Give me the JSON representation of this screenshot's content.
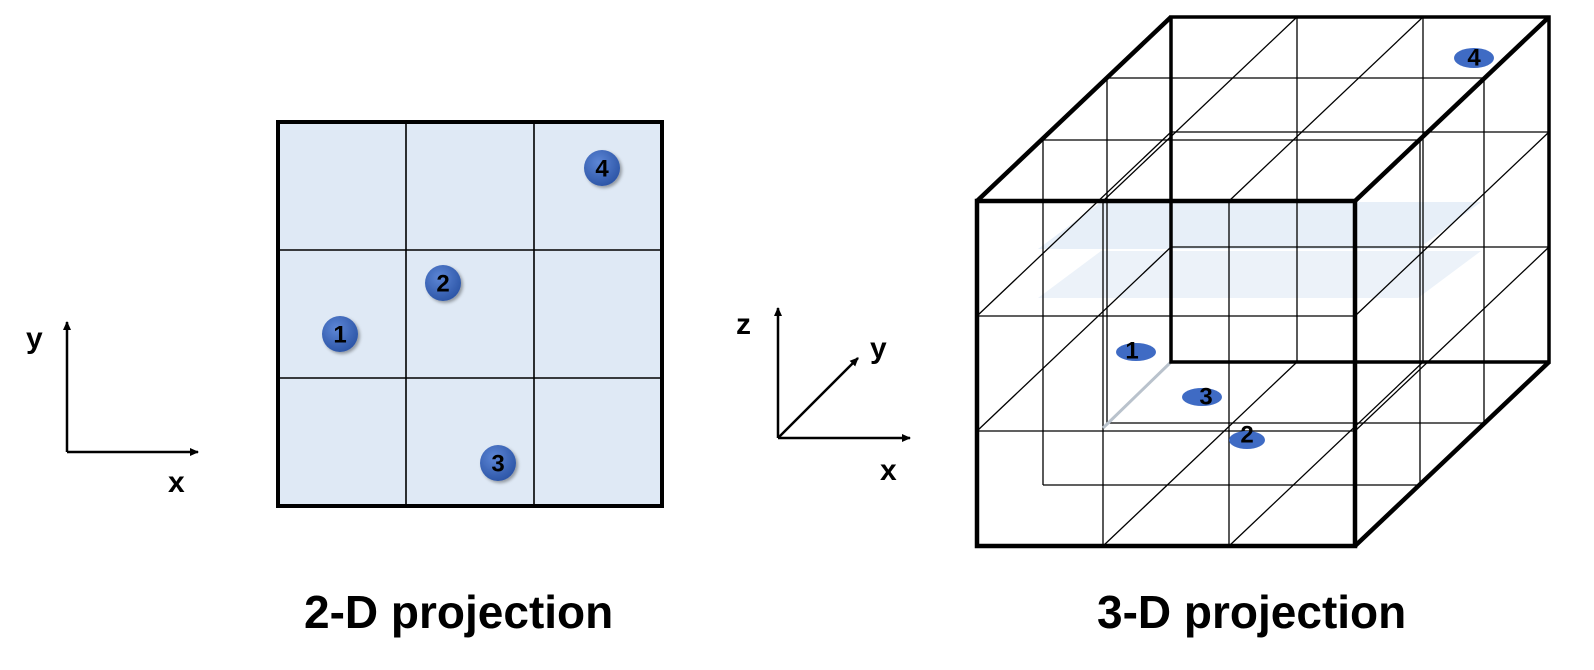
{
  "diagram": {
    "left_panel": {
      "caption": "2-D projection",
      "axes": {
        "x": "x",
        "y": "y"
      },
      "grid": {
        "rows": 3,
        "cols": 3,
        "fill": "#dfe9f5"
      },
      "points": [
        {
          "label": "1"
        },
        {
          "label": "2"
        },
        {
          "label": "3"
        },
        {
          "label": "4"
        }
      ]
    },
    "right_panel": {
      "caption": "3-D projection",
      "axes": {
        "x": "x",
        "y": "y",
        "z": "z"
      },
      "grid": {
        "divisions": 3,
        "plane_fill": "#dfe9f5"
      },
      "points": [
        {
          "label": "1"
        },
        {
          "label": "2"
        },
        {
          "label": "3"
        },
        {
          "label": "4"
        }
      ]
    },
    "colors": {
      "point": "#3f6bc4",
      "point_edge": "#2c4f96",
      "line": "#000000",
      "plane": "#dfe9f5"
    }
  }
}
